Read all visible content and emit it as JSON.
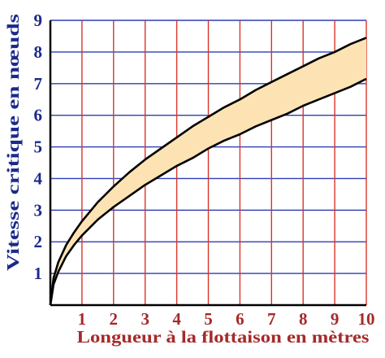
{
  "chart_data": {
    "type": "area",
    "xlabel": "Longueur à la flottaison en mètres",
    "ylabel": "Vitesse critique en nœuds",
    "xlim": [
      0,
      10
    ],
    "ylim": [
      0,
      9
    ],
    "x_ticks": [
      "1",
      "2",
      "3",
      "4",
      "5",
      "6",
      "7",
      "8",
      "9",
      "10"
    ],
    "y_ticks": [
      "1",
      "2",
      "3",
      "4",
      "5",
      "6",
      "7",
      "8",
      "9"
    ],
    "grid": true,
    "series": [
      {
        "values": [
          {
            "x": 0,
            "y": 0
          },
          {
            "x": 0.1,
            "y": 0.85
          },
          {
            "x": 0.25,
            "y": 1.35
          },
          {
            "x": 0.5,
            "y": 1.9
          },
          {
            "x": 0.75,
            "y": 2.3
          },
          {
            "x": 1,
            "y": 2.65
          },
          {
            "x": 1.5,
            "y": 3.25
          },
          {
            "x": 2,
            "y": 3.75
          },
          {
            "x": 2.5,
            "y": 4.2
          },
          {
            "x": 3,
            "y": 4.6
          },
          {
            "x": 3.5,
            "y": 4.95
          },
          {
            "x": 4,
            "y": 5.3
          },
          {
            "x": 4.5,
            "y": 5.65
          },
          {
            "x": 5,
            "y": 5.95
          },
          {
            "x": 5.5,
            "y": 6.25
          },
          {
            "x": 6,
            "y": 6.5
          },
          {
            "x": 6.5,
            "y": 6.8
          },
          {
            "x": 7,
            "y": 7.05
          },
          {
            "x": 7.5,
            "y": 7.3
          },
          {
            "x": 8,
            "y": 7.55
          },
          {
            "x": 8.5,
            "y": 7.8
          },
          {
            "x": 9,
            "y": 8.0
          },
          {
            "x": 9.5,
            "y": 8.25
          },
          {
            "x": 10,
            "y": 8.45
          }
        ]
      },
      {
        "values": [
          {
            "x": 0,
            "y": 0
          },
          {
            "x": 0.1,
            "y": 0.65
          },
          {
            "x": 0.25,
            "y": 1.05
          },
          {
            "x": 0.5,
            "y": 1.55
          },
          {
            "x": 0.75,
            "y": 1.9
          },
          {
            "x": 1,
            "y": 2.2
          },
          {
            "x": 1.5,
            "y": 2.7
          },
          {
            "x": 2,
            "y": 3.1
          },
          {
            "x": 2.5,
            "y": 3.45
          },
          {
            "x": 3,
            "y": 3.8
          },
          {
            "x": 3.5,
            "y": 4.1
          },
          {
            "x": 4,
            "y": 4.4
          },
          {
            "x": 4.5,
            "y": 4.65
          },
          {
            "x": 5,
            "y": 4.95
          },
          {
            "x": 5.5,
            "y": 5.2
          },
          {
            "x": 6,
            "y": 5.4
          },
          {
            "x": 6.5,
            "y": 5.65
          },
          {
            "x": 7,
            "y": 5.85
          },
          {
            "x": 7.5,
            "y": 6.05
          },
          {
            "x": 8,
            "y": 6.3
          },
          {
            "x": 8.5,
            "y": 6.5
          },
          {
            "x": 9,
            "y": 6.7
          },
          {
            "x": 9.5,
            "y": 6.9
          },
          {
            "x": 10,
            "y": 7.15
          }
        ]
      }
    ],
    "colors": {
      "vertical_grid": "#d9342b",
      "horizontal_grid": "#2b3fb5",
      "band_fill": "#fde3b3",
      "curve": "#000000",
      "x_text": "#a52a2a",
      "y_text": "#1b2a8a",
      "background": "#ffffff"
    }
  }
}
